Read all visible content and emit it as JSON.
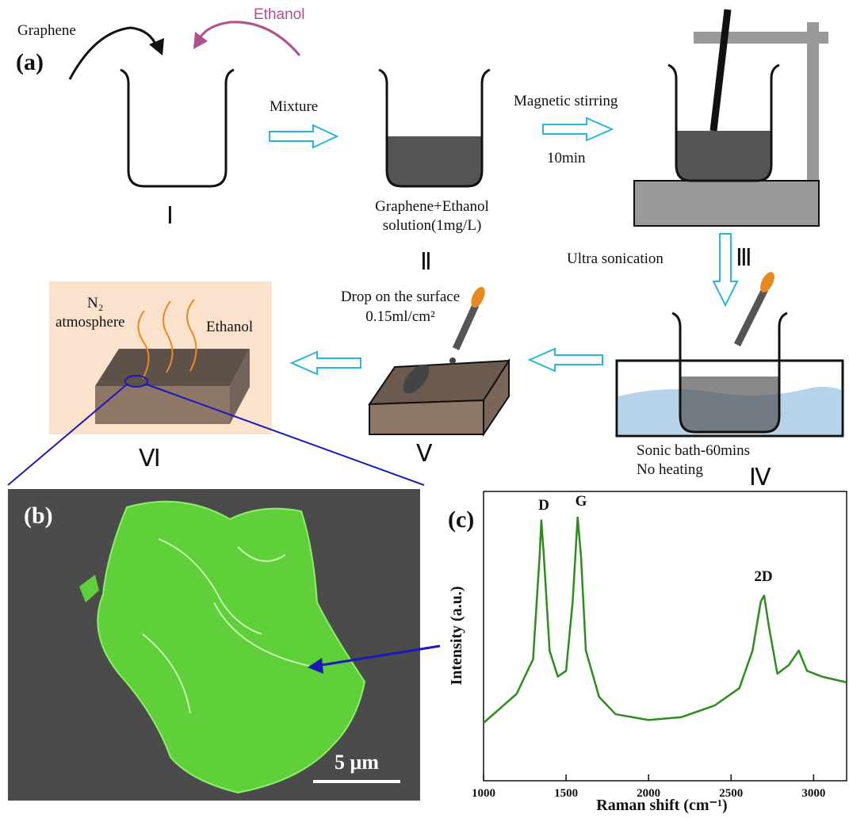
{
  "panel_a": {
    "label": "(a)",
    "graphene": "Graphene",
    "ethanol_in": "Ethanol",
    "mixture": "Mixture",
    "stirring": "Magnetic stirring",
    "stir_time": "10min",
    "solution_1": "Graphene+Ethanol",
    "solution_2": "solution(1mg/L)",
    "sonication": "Ultra sonication",
    "drop_1": "Drop on the surface",
    "drop_2": "0.15ml/cm²",
    "bath_1": "Sonic bath-60mins",
    "bath_2": "No heating",
    "n2": "N₂",
    "atmosphere": "atmosphere",
    "ethanol_out": "Ethanol",
    "steps": [
      "Ⅰ",
      "Ⅱ",
      "Ⅲ",
      "Ⅳ",
      "Ⅴ",
      "Ⅵ"
    ]
  },
  "panel_b": {
    "label": "(b)",
    "scale": "5 μm"
  },
  "chart_data": {
    "type": "line",
    "title": "(c)",
    "x_label": "Raman shift (cm⁻¹)",
    "y_label": "Intensity (a.u.)",
    "annotations": [
      "D",
      "G",
      "2D"
    ],
    "color": "#2e8b1e",
    "x": [
      1000,
      1100,
      1200,
      1300,
      1340,
      1350,
      1365,
      1400,
      1450,
      1500,
      1540,
      1570,
      1590,
      1620,
      1700,
      1800,
      2000,
      2200,
      2400,
      2550,
      2630,
      2680,
      2700,
      2730,
      2780,
      2850,
      2910,
      2960,
      3050,
      3200
    ],
    "values": [
      20,
      25,
      30,
      42,
      78,
      90,
      78,
      45,
      36,
      38,
      62,
      91,
      78,
      45,
      29,
      23,
      21,
      22,
      26,
      32,
      45,
      62,
      64,
      53,
      37,
      40,
      45,
      38,
      36,
      34
    ],
    "xlim": [
      1000,
      3200
    ],
    "ylim": [
      0,
      100
    ],
    "xticks": [
      1000,
      1500,
      2000,
      2500,
      3000
    ]
  }
}
